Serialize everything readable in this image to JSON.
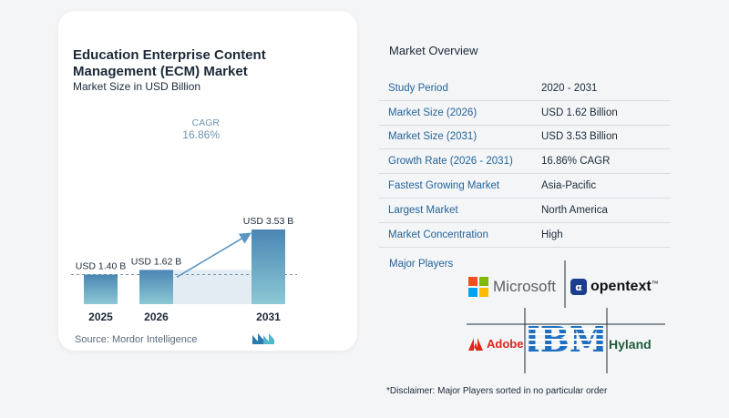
{
  "chart_data": {
    "type": "bar",
    "title": "Education Enterprise Content Management (ECM) Market",
    "subtitle": "Market Size in USD Billion",
    "categories": [
      "2025",
      "2026",
      "2031"
    ],
    "values": [
      1.4,
      1.62,
      3.53
    ],
    "data_labels": [
      "USD 1.40 B",
      "USD 1.62 B",
      "USD 3.53 B"
    ],
    "cagr_label": "CAGR",
    "cagr_value": "16.86%",
    "colors": {
      "bar_top": "#4b86b4",
      "bar_bottom": "#8cc8d4",
      "band": "#e3ecf3",
      "arrow": "#5b96c2"
    }
  },
  "source": "Source:  Mordor Intelligence",
  "overview": {
    "title": "Market Overview",
    "rows": [
      {
        "label": "Study Period",
        "value": "2020 - 2031"
      },
      {
        "label": "Market Size (2026)",
        "value": "USD 1.62 Billion"
      },
      {
        "label": "Market Size (2031)",
        "value": "USD 3.53 Billion"
      },
      {
        "label": "Growth Rate (2026 - 2031)",
        "value": "16.86% CAGR"
      },
      {
        "label": "Fastest Growing Market",
        "value": "Asia-Pacific"
      },
      {
        "label": "Largest Market",
        "value": "North America"
      },
      {
        "label": "Market Concentration",
        "value": "High"
      }
    ]
  },
  "players": {
    "title": "Major Players",
    "logos": {
      "microsoft": "Microsoft",
      "opentext": "opentext",
      "adobe": "Adobe",
      "ibm": "IBM",
      "hyland": "Hyland"
    }
  },
  "disclaimer": "*Disclaimer: Major Players sorted in no particular order"
}
